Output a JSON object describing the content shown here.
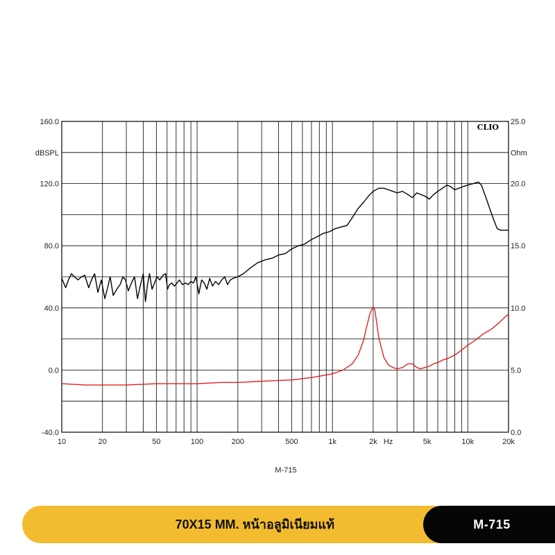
{
  "chart_data": {
    "type": "line",
    "title": "",
    "brand_label": "CLIO",
    "xlabel": "Hz",
    "model_caption": "M-715",
    "x_scale": "log",
    "xlim": [
      10,
      20000
    ],
    "x_tick_values": [
      10,
      20,
      50,
      100,
      200,
      500,
      1000,
      2000,
      5000,
      10000,
      20000
    ],
    "x_tick_labels": [
      "10",
      "20",
      "50",
      "100",
      "200",
      "500",
      "1k",
      "2k",
      "5k",
      "10k",
      "20k"
    ],
    "y_left": {
      "label": "dBSPL",
      "lim": [
        -40,
        160
      ],
      "tick_values": [
        -40,
        0,
        40,
        80,
        120,
        160
      ],
      "tick_labels": [
        "-40.0",
        "0.0",
        "40.0",
        "80.0",
        "120.0",
        "160.0"
      ]
    },
    "y_right": {
      "label": "Ohm",
      "lim": [
        0,
        25
      ],
      "tick_values": [
        0,
        5,
        10,
        15,
        20,
        25
      ],
      "tick_labels": [
        "0.0",
        "5.0",
        "10.0",
        "15.0",
        "20.0",
        "25.0"
      ]
    },
    "grid": true,
    "series": [
      {
        "name": "",
        "axis": "left",
        "color": "#000000",
        "x": [
          10,
          10.7,
          11.2,
          11.8,
          12.4,
          13.2,
          14,
          14.8,
          15.8,
          16.6,
          17.5,
          18.5,
          19.6,
          20.8,
          21.7,
          22.8,
          24,
          25.5,
          27,
          28.3,
          29.6,
          31,
          32.7,
          34.5,
          36.3,
          38,
          40,
          41.5,
          43,
          44.5,
          46.5,
          48.5,
          50.5,
          53,
          56,
          58.5,
          60.5,
          62.5,
          65,
          68,
          71,
          74,
          78,
          82,
          86,
          90,
          94,
          98,
          103,
          108,
          113,
          118,
          124,
          130,
          137,
          144,
          152,
          160,
          168,
          176,
          185,
          200,
          220,
          250,
          280,
          320,
          360,
          400,
          450,
          500,
          560,
          620,
          700,
          780,
          860,
          950,
          1050,
          1150,
          1280,
          1400,
          1550,
          1700,
          1850,
          2000,
          2200,
          2400,
          2600,
          2800,
          3000,
          3300,
          3600,
          3900,
          4200,
          4500,
          4800,
          5200,
          5600,
          6000,
          6500,
          7000,
          7500,
          8000,
          8600,
          9200,
          10000,
          11000,
          12000,
          12600,
          13500,
          14500,
          15500,
          16500,
          17500,
          18500,
          20000
        ],
        "values": [
          59,
          53,
          58,
          62,
          60,
          58,
          60,
          61,
          53,
          58,
          62,
          50,
          58,
          46,
          52,
          60,
          48,
          52,
          55,
          60,
          58,
          51,
          56,
          60,
          46,
          54,
          62,
          44,
          55,
          62,
          52,
          56,
          60,
          58,
          61,
          62,
          52,
          55,
          56,
          54,
          56,
          58,
          55,
          56,
          55,
          57,
          56,
          60,
          49,
          58,
          56,
          52,
          59,
          54,
          57,
          55,
          58,
          60,
          55,
          58,
          59,
          60,
          62,
          66,
          69,
          71,
          72,
          74,
          75,
          78,
          80,
          81,
          84,
          86,
          88,
          89,
          91,
          92,
          93,
          98,
          104,
          108,
          112,
          115,
          117,
          117,
          116,
          115,
          114,
          115,
          113,
          111,
          114,
          113,
          112,
          110,
          113,
          115,
          117,
          119,
          118,
          116,
          117,
          118,
          119,
          120,
          121,
          119,
          112,
          104,
          97,
          91,
          90,
          90,
          90
        ]
      },
      {
        "name": "",
        "axis": "right",
        "color": "#e02020",
        "x": [
          10,
          15,
          20,
          30,
          50,
          100,
          150,
          200,
          300,
          500,
          700,
          900,
          1000,
          1200,
          1400,
          1550,
          1700,
          1800,
          1900,
          2000,
          2050,
          2100,
          2200,
          2400,
          2600,
          2800,
          3000,
          3300,
          3600,
          3900,
          4200,
          4500,
          4800,
          5200,
          5600,
          6000,
          6500,
          7000,
          8000,
          9000,
          10000,
          11000,
          12000,
          13000,
          15000,
          17000,
          19000,
          20000
        ],
        "values": [
          3.9,
          3.8,
          3.8,
          3.8,
          3.9,
          3.9,
          4.0,
          4.0,
          4.1,
          4.2,
          4.4,
          4.6,
          4.7,
          5.0,
          5.5,
          6.2,
          7.4,
          8.6,
          9.6,
          10.1,
          9.9,
          9.2,
          7.6,
          6.0,
          5.4,
          5.2,
          5.1,
          5.2,
          5.5,
          5.5,
          5.2,
          5.1,
          5.2,
          5.3,
          5.5,
          5.6,
          5.8,
          5.9,
          6.2,
          6.6,
          7.0,
          7.3,
          7.6,
          7.9,
          8.3,
          8.8,
          9.3,
          9.5
        ]
      }
    ]
  },
  "banner": {
    "description": "70X15 MM. หน้าอลูมิเนียมแท้",
    "model": "M-715",
    "colors": {
      "bar": "#f3bb2f",
      "label_bg": "#050505"
    }
  }
}
